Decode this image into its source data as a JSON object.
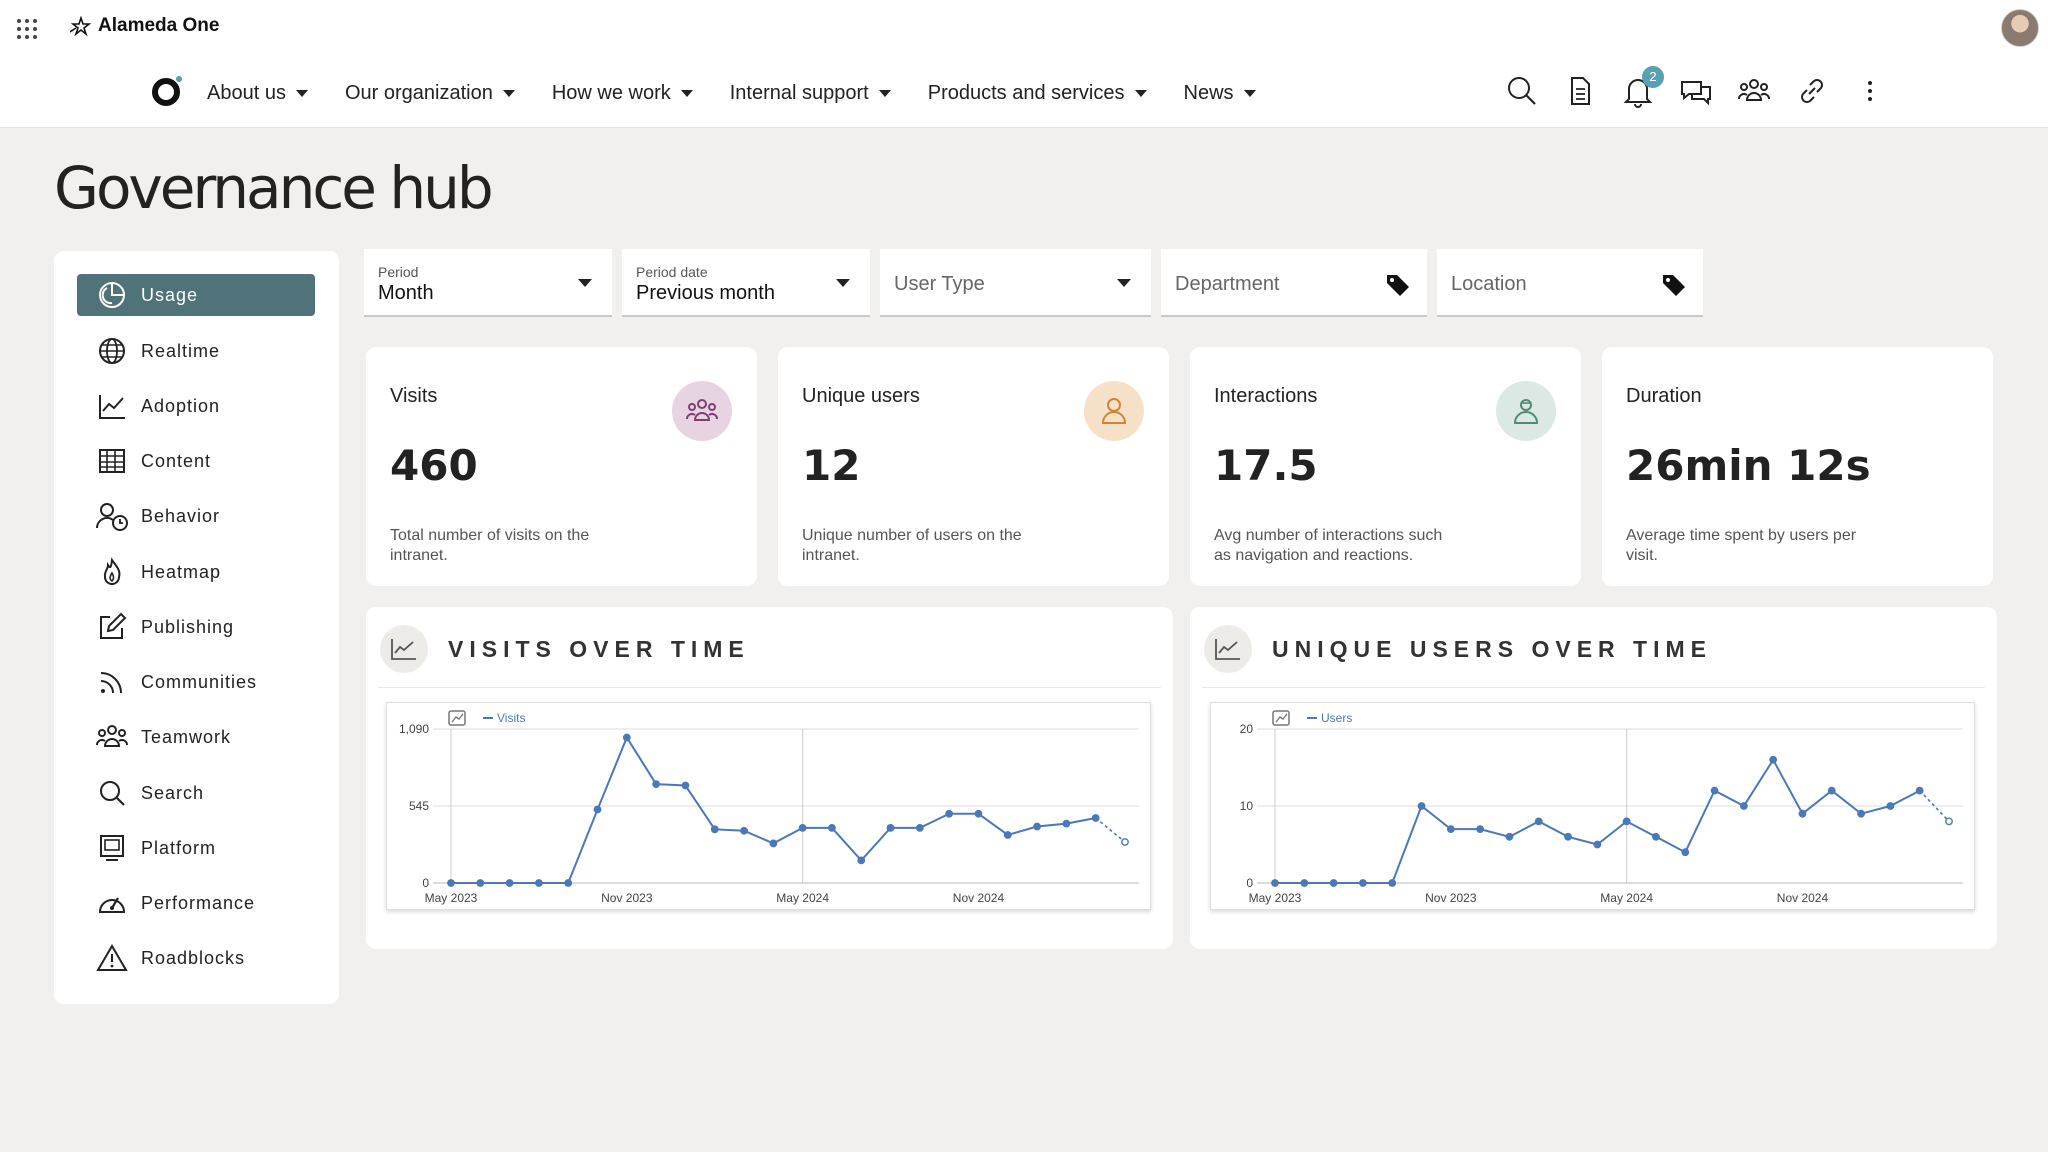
{
  "app": {
    "name": "Alameda One"
  },
  "nav": {
    "items": [
      {
        "label": "About us"
      },
      {
        "label": "Our organization"
      },
      {
        "label": "How we work"
      },
      {
        "label": "Internal support"
      },
      {
        "label": "Products and services"
      },
      {
        "label": "News"
      }
    ],
    "notification_count": "2"
  },
  "page": {
    "title": "Governance hub"
  },
  "sidebar": {
    "items": [
      {
        "label": "Usage",
        "active": true
      },
      {
        "label": "Realtime"
      },
      {
        "label": "Adoption"
      },
      {
        "label": "Content"
      },
      {
        "label": "Behavior"
      },
      {
        "label": "Heatmap"
      },
      {
        "label": "Publishing"
      },
      {
        "label": "Communities"
      },
      {
        "label": "Teamwork"
      },
      {
        "label": "Search"
      },
      {
        "label": "Platform"
      },
      {
        "label": "Performance"
      },
      {
        "label": "Roadblocks"
      }
    ]
  },
  "filters": {
    "period": {
      "label": "Period",
      "value": "Month"
    },
    "period_date": {
      "label": "Period date",
      "value": "Previous month"
    },
    "user_type": {
      "placeholder": "User Type"
    },
    "department": {
      "placeholder": "Department"
    },
    "location": {
      "placeholder": "Location"
    }
  },
  "cards": [
    {
      "title": "Visits",
      "value": "460",
      "desc": "Total number of visits on the intranet.",
      "icon": "people-group-icon",
      "color": "#e8d3e3"
    },
    {
      "title": "Unique users",
      "value": "12",
      "desc": "Unique number of users on the intranet.",
      "icon": "user-icon",
      "color": "#f7e0c8"
    },
    {
      "title": "Interactions",
      "value": "17.5",
      "desc": "Avg number of interactions such as navigation and reactions.",
      "icon": "interaction-icon",
      "color": "#dbe8e3"
    },
    {
      "title": "Duration",
      "value": "26min 12s",
      "desc": "Average time spent by users per visit."
    }
  ],
  "panels": {
    "visits_title": "VISITS OVER TIME",
    "users_title": "UNIQUE USERS OVER TIME"
  },
  "chart_data": [
    {
      "type": "line",
      "title": "VISITS OVER TIME",
      "x_tick_labels": [
        "May 2023",
        "Nov 2023",
        "May 2024",
        "Nov 2024"
      ],
      "y_tick_labels": [
        "0",
        "545",
        "1,090"
      ],
      "ylim": [
        0,
        1090
      ],
      "series": [
        {
          "name": "Visits",
          "color": "#4a78b8",
          "values": [
            0,
            0,
            0,
            0,
            0,
            520,
            1030,
            700,
            690,
            380,
            370,
            280,
            390,
            390,
            160,
            390,
            390,
            490,
            490,
            340,
            400,
            420,
            460,
            290
          ],
          "last_point_projected": true
        }
      ]
    },
    {
      "type": "line",
      "title": "UNIQUE USERS OVER TIME",
      "x_tick_labels": [
        "May 2023",
        "Nov 2023",
        "May 2024",
        "Nov 2024"
      ],
      "y_tick_labels": [
        "0",
        "10",
        "20"
      ],
      "ylim": [
        0,
        20
      ],
      "series": [
        {
          "name": "Users",
          "color": "#4a78b8",
          "values": [
            0,
            0,
            0,
            0,
            0,
            10,
            7,
            7,
            6,
            8,
            6,
            5,
            8,
            6,
            4,
            12,
            10,
            16,
            9,
            12,
            9,
            10,
            12,
            8
          ],
          "last_point_projected": true
        }
      ]
    }
  ]
}
